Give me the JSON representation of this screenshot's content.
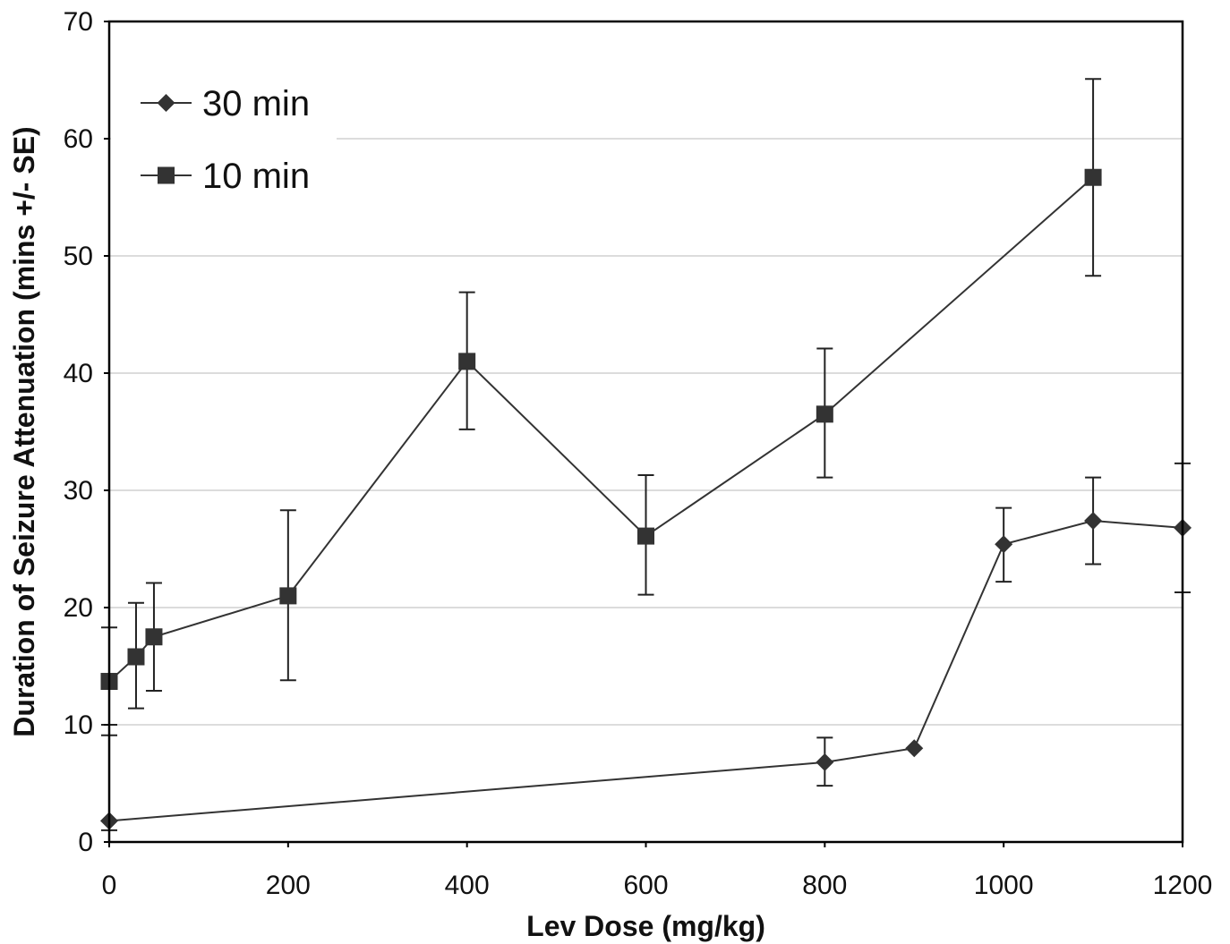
{
  "chart_data": {
    "type": "line",
    "title": "",
    "xlabel": "Lev Dose (mg/kg)",
    "ylabel": "Duration of Seizure Attenuation (mins +/- SE)",
    "xlim": [
      0,
      1200
    ],
    "ylim": [
      0,
      70
    ],
    "x_ticks": [
      0,
      200,
      400,
      600,
      800,
      1000,
      1200
    ],
    "y_ticks": [
      0,
      10,
      20,
      30,
      40,
      50,
      60,
      70
    ],
    "grid": "horizontal",
    "legend_position": "top-left",
    "series": [
      {
        "name": "30 min",
        "marker": "diamond",
        "color": "#333333",
        "x": [
          0,
          800,
          900,
          1000,
          1100,
          1200
        ],
        "y": [
          1.8,
          6.8,
          8.0,
          25.4,
          27.4,
          26.8
        ],
        "err_low": [
          1.0,
          4.8,
          8.0,
          22.2,
          23.7,
          21.3
        ],
        "err_high": [
          9.1,
          8.9,
          8.0,
          28.5,
          31.1,
          32.3
        ]
      },
      {
        "name": "10 min",
        "marker": "square",
        "color": "#333333",
        "x": [
          0,
          30,
          50,
          200,
          400,
          600,
          800,
          1100
        ],
        "y": [
          13.7,
          15.8,
          17.5,
          21.0,
          41.0,
          26.1,
          36.5,
          56.7
        ],
        "err_low": [
          10.0,
          11.4,
          12.9,
          13.8,
          35.2,
          21.1,
          31.1,
          48.3
        ],
        "err_high": [
          18.3,
          20.4,
          22.1,
          28.3,
          46.9,
          31.3,
          42.1,
          65.1
        ]
      }
    ]
  }
}
